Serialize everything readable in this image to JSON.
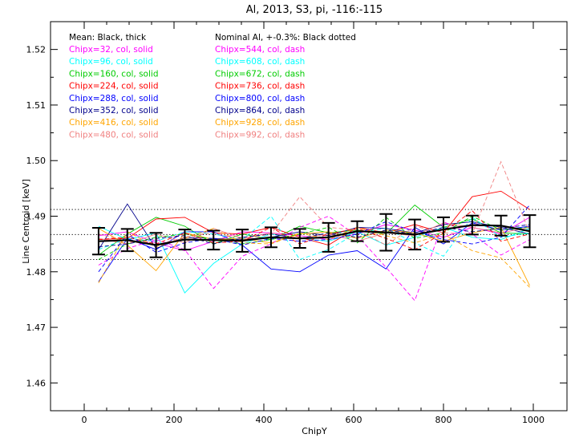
{
  "chart_data": {
    "type": "line",
    "title": "Al, 2013, S3, pi, -116:-115",
    "xlabel": "ChipY",
    "ylabel": "Line Centroid [keV]",
    "xlim": [
      -75,
      1075
    ],
    "ylim": [
      1.455,
      1.525
    ],
    "xticks": [
      0,
      200,
      400,
      600,
      800,
      1000
    ],
    "xtick_labels": [
      "0",
      "200",
      "400",
      "600",
      "800",
      "1000"
    ],
    "yticks": [
      1.46,
      1.47,
      1.48,
      1.49,
      1.5,
      1.51,
      1.52
    ],
    "ytick_labels": [
      "1.46",
      "1.47",
      "1.48",
      "1.49",
      "1.50",
      "1.51",
      "1.52"
    ],
    "x": [
      32,
      96,
      160,
      224,
      288,
      352,
      416,
      480,
      544,
      608,
      672,
      736,
      800,
      864,
      928,
      992
    ],
    "mean": {
      "label": "Mean: Black, thick",
      "color": "#000000",
      "values": [
        1.4855,
        1.4857,
        1.4848,
        1.4858,
        1.4857,
        1.4856,
        1.4862,
        1.486,
        1.4862,
        1.4873,
        1.4871,
        1.4867,
        1.4876,
        1.4884,
        1.4883,
        1.4873
      ],
      "errors": [
        0.0024,
        0.002,
        0.0022,
        0.0018,
        0.0017,
        0.002,
        0.0018,
        0.0017,
        0.0026,
        0.0018,
        0.0033,
        0.0027,
        0.0022,
        0.0017,
        0.0018,
        0.0029
      ]
    },
    "nominal": {
      "label": "Nominal Al, +-0.3%: Black dotted",
      "center": 1.4867,
      "lower": 1.4822,
      "upper": 1.4912
    },
    "series": [
      {
        "name": "Chipx=32, col, solid",
        "color": "#ff00ff",
        "style": "solid",
        "values": [
          1.4865,
          1.4872,
          1.4852,
          1.4838,
          1.4855,
          1.4872,
          1.487,
          1.4865,
          1.4858,
          1.4868,
          1.4885,
          1.4875,
          1.4862,
          1.488,
          1.4868,
          1.4898
        ]
      },
      {
        "name": "Chipx=96, col, solid",
        "color": "#00ffff",
        "style": "solid",
        "values": [
          1.4882,
          1.4858,
          1.487,
          1.4762,
          1.4815,
          1.485,
          1.4868,
          1.486,
          1.4855,
          1.4872,
          1.4848,
          1.4862,
          1.488,
          1.4862,
          1.4858,
          1.4878
        ]
      },
      {
        "name": "Chipx=160, col, solid",
        "color": "#00cc00",
        "style": "solid",
        "values": [
          1.483,
          1.4868,
          1.4898,
          1.4882,
          1.485,
          1.4868,
          1.4858,
          1.4882,
          1.487,
          1.4875,
          1.4868,
          1.492,
          1.488,
          1.4895,
          1.487,
          1.4868
        ]
      },
      {
        "name": "Chipx=224, col, solid",
        "color": "#ff0000",
        "style": "solid",
        "values": [
          1.4858,
          1.486,
          1.4895,
          1.4898,
          1.487,
          1.4868,
          1.488,
          1.4862,
          1.4848,
          1.488,
          1.487,
          1.4885,
          1.487,
          1.4935,
          1.4945,
          1.4912
        ]
      },
      {
        "name": "Chipx=288, col, solid",
        "color": "#0000ff",
        "style": "solid",
        "values": [
          1.4782,
          1.486,
          1.484,
          1.4872,
          1.4872,
          1.4848,
          1.4805,
          1.48,
          1.483,
          1.4838,
          1.4805,
          1.488,
          1.485,
          1.4888,
          1.4875,
          1.4882
        ]
      },
      {
        "name": "Chipx=352, col, solid",
        "color": "#00008b",
        "style": "solid",
        "values": [
          1.484,
          1.4922,
          1.4842,
          1.4862,
          1.486,
          1.4858,
          1.4862,
          1.4872,
          1.4865,
          1.488,
          1.4878,
          1.487,
          1.4885,
          1.489,
          1.488,
          1.4868
        ]
      },
      {
        "name": "Chipx=416, col, solid",
        "color": "#ffa500",
        "style": "solid",
        "values": [
          1.4878,
          1.4848,
          1.4802,
          1.487,
          1.4858,
          1.486,
          1.4852,
          1.4868,
          1.4872,
          1.486,
          1.4875,
          1.487,
          1.4855,
          1.487,
          1.488,
          1.4775
        ]
      },
      {
        "name": "Chipx=480, col, solid",
        "color": "#f08080",
        "style": "solid",
        "values": [
          1.486,
          1.485,
          1.4868,
          1.4852,
          1.4878,
          1.486,
          1.487,
          1.486,
          1.4868,
          1.4855,
          1.487,
          1.4865,
          1.4888,
          1.488,
          1.487,
          1.488
        ]
      },
      {
        "name": "Chipx=544, col, dash",
        "color": "#ff00ff",
        "style": "dash",
        "values": [
          1.4812,
          1.4842,
          1.4858,
          1.484,
          1.477,
          1.4828,
          1.485,
          1.488,
          1.49,
          1.4865,
          1.4808,
          1.4748,
          1.489,
          1.4868,
          1.483,
          1.4858
        ]
      },
      {
        "name": "Chipx=608, col, dash",
        "color": "#00ffff",
        "style": "dash",
        "values": [
          1.484,
          1.486,
          1.4855,
          1.4872,
          1.4868,
          1.4858,
          1.49,
          1.4822,
          1.484,
          1.487,
          1.4878,
          1.4852,
          1.4828,
          1.4898,
          1.4862,
          1.487
        ]
      },
      {
        "name": "Chipx=672, col, dash",
        "color": "#00cc00",
        "style": "dash",
        "values": [
          1.4822,
          1.485,
          1.4862,
          1.4868,
          1.4858,
          1.485,
          1.4858,
          1.4868,
          1.488,
          1.4852,
          1.4898,
          1.486,
          1.487,
          1.49,
          1.4875,
          1.488
        ]
      },
      {
        "name": "Chipx=736, col, dash",
        "color": "#ff0000",
        "style": "dash",
        "values": [
          1.4858,
          1.4862,
          1.485,
          1.487,
          1.4852,
          1.4855,
          1.488,
          1.485,
          1.4868,
          1.4878,
          1.486,
          1.484,
          1.487,
          1.491,
          1.4855,
          1.4868
        ]
      },
      {
        "name": "Chipx=800, col, dash",
        "color": "#0000ff",
        "style": "dash",
        "values": [
          1.48,
          1.4868,
          1.4835,
          1.4852,
          1.486,
          1.4848,
          1.486,
          1.4855,
          1.4858,
          1.4868,
          1.489,
          1.4872,
          1.4858,
          1.485,
          1.4862,
          1.492
        ]
      },
      {
        "name": "Chipx=864, col, dash",
        "color": "#00008b",
        "style": "dash",
        "values": [
          1.4845,
          1.485,
          1.486,
          1.4865,
          1.485,
          1.4862,
          1.4868,
          1.486,
          1.487,
          1.4862,
          1.4875,
          1.4868,
          1.488,
          1.4872,
          1.4878,
          1.4885
        ]
      },
      {
        "name": "Chipx=928, col, dash",
        "color": "#ffa500",
        "style": "dash",
        "values": [
          1.478,
          1.4872,
          1.4845,
          1.486,
          1.4878,
          1.4852,
          1.485,
          1.487,
          1.4858,
          1.488,
          1.4865,
          1.4852,
          1.4868,
          1.4838,
          1.4825,
          1.4772
        ]
      },
      {
        "name": "Chipx=992, col, dash",
        "color": "#f08080",
        "style": "dash",
        "values": [
          1.4868,
          1.4855,
          1.4848,
          1.4862,
          1.487,
          1.4858,
          1.4868,
          1.4935,
          1.488,
          1.4875,
          1.4848,
          1.4882,
          1.487,
          1.4868,
          1.4998,
          1.487
        ]
      }
    ]
  }
}
